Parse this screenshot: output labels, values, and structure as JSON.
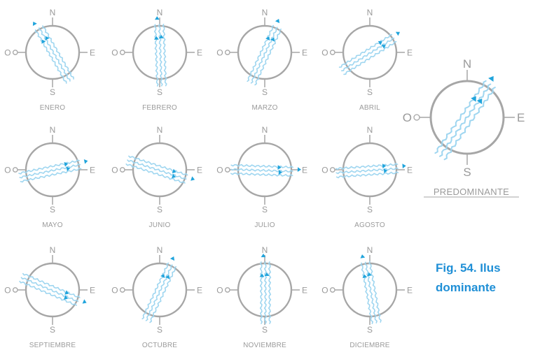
{
  "diagram": {
    "cardinals": {
      "n": "N",
      "e": "E",
      "s": "S",
      "w": "O"
    },
    "months": [
      {
        "name": "ENERO",
        "direction_deg": 330
      },
      {
        "name": "FEBRERO",
        "direction_deg": 358
      },
      {
        "name": "MARZO",
        "direction_deg": 25
      },
      {
        "name": "ABRIL",
        "direction_deg": 58
      },
      {
        "name": "MAYO",
        "direction_deg": 78
      },
      {
        "name": "JUNIO",
        "direction_deg": 108
      },
      {
        "name": "JULIO",
        "direction_deg": 92
      },
      {
        "name": "AGOSTO",
        "direction_deg": 86
      },
      {
        "name": "SEPTIEMBRE",
        "direction_deg": 113
      },
      {
        "name": "OCTUBRE",
        "direction_deg": 25
      },
      {
        "name": "NOVIEMBRE",
        "direction_deg": 0
      },
      {
        "name": "DICIEMBRE",
        "direction_deg": 350
      }
    ],
    "predominant": {
      "name": "PREDOMINANTE",
      "direction_deg": 35
    },
    "caption": {
      "line1": "Fig. 54. Ilus",
      "line2": "dominante"
    },
    "colors": {
      "ring": "#a6a6a6",
      "arrow": "#20a4dc",
      "stream": "#9fd6f0",
      "caption": "#1f8fd6",
      "label": "#9a9a9a"
    }
  }
}
